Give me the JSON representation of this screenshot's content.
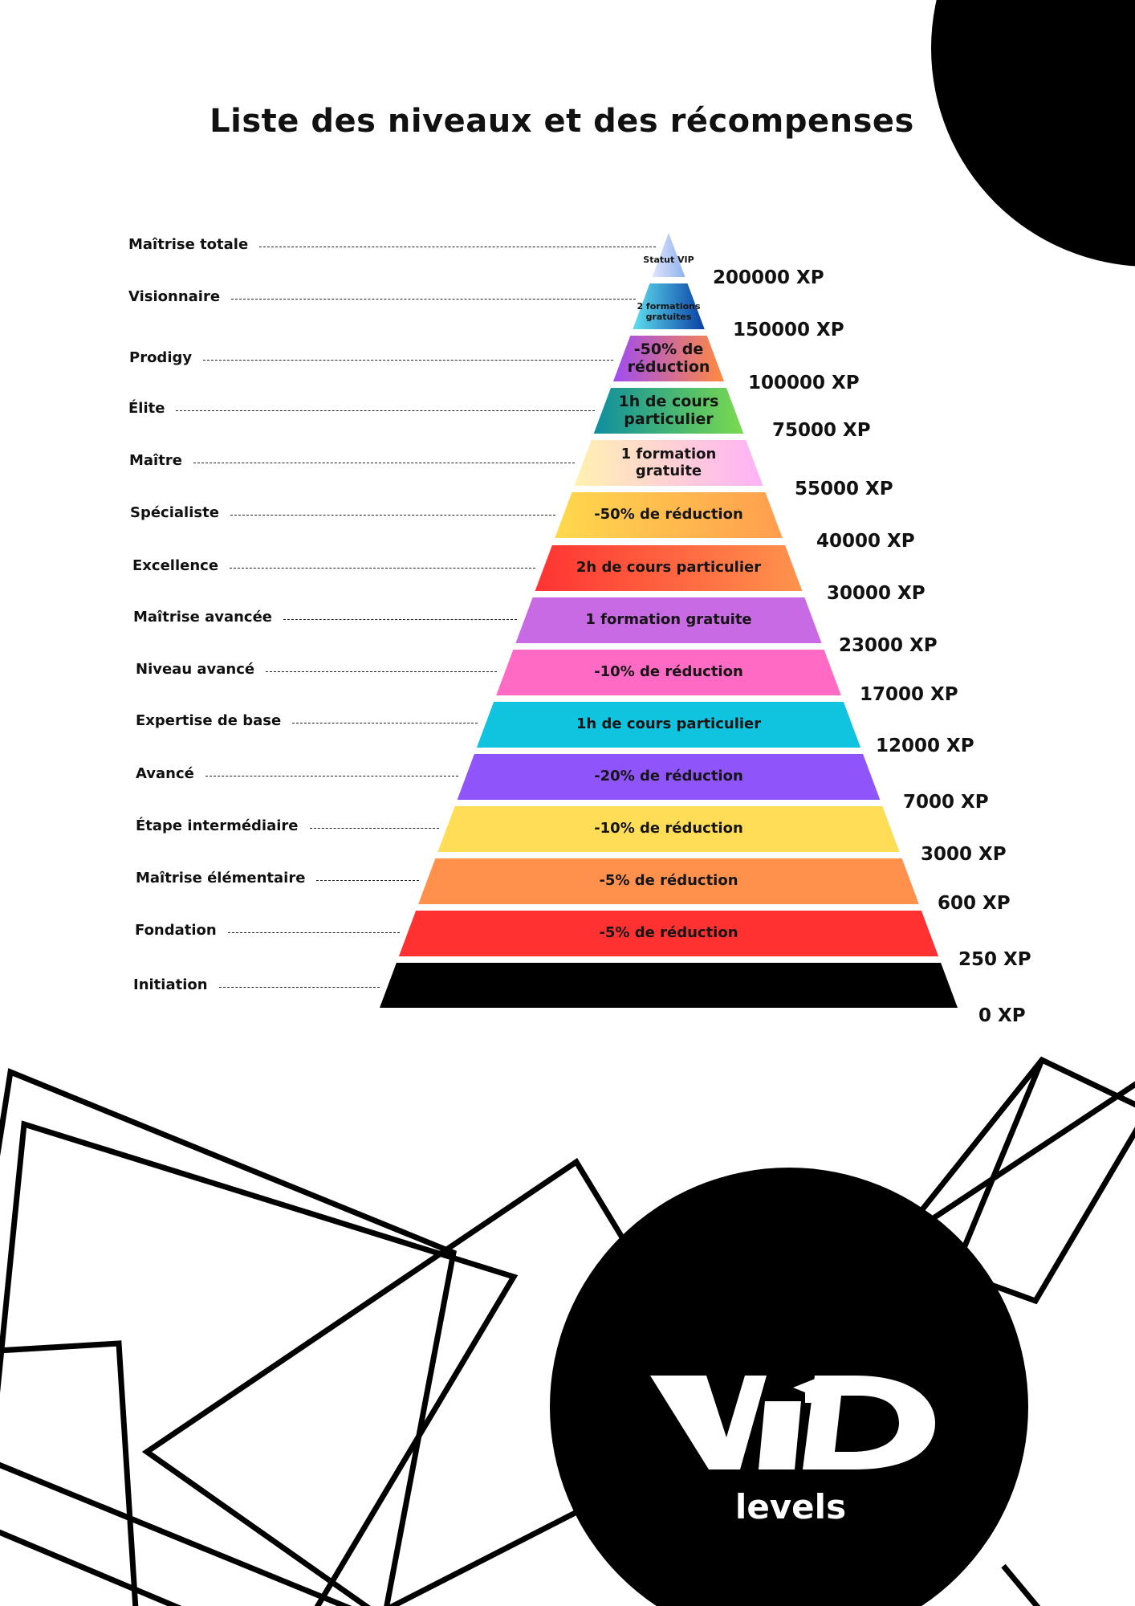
{
  "title": "Liste des niveaux et des récompenses",
  "levels": [
    {
      "name": "Maîtrise totale",
      "reward": "Statut VIP",
      "xp": "200000 XP",
      "colors": [
        "#dfe4fb",
        "#8fb3ef"
      ]
    },
    {
      "name": "Visionnaire",
      "reward": "2 formations gratuites",
      "xp": "150000 XP",
      "colors": [
        "#5fe0ee",
        "#0a3fa5"
      ]
    },
    {
      "name": "Prodigy",
      "reward": "-50% de réduction",
      "xp": "100000 XP",
      "colors": [
        "#9e4cf2",
        "#ff8a3f"
      ]
    },
    {
      "name": "Élite",
      "reward": "1h de cours particulier",
      "xp": "75000 XP",
      "colors": [
        "#0e8d9f",
        "#7ada4e"
      ]
    },
    {
      "name": "Maître",
      "reward": "1 formation gratuite",
      "xp": "55000 XP",
      "colors": [
        "#fff1b0",
        "#ffb1f7"
      ]
    },
    {
      "name": "Spécialiste",
      "reward": "-50% de réduction",
      "xp": "40000 XP",
      "colors": [
        "#ffd94d",
        "#ff9d4f"
      ]
    },
    {
      "name": "Excellence",
      "reward": "2h de cours particulier",
      "xp": "30000 XP",
      "colors": [
        "#ff3333",
        "#ff944d"
      ]
    },
    {
      "name": "Maîtrise avancée",
      "reward": "1 formation gratuite",
      "xp": "23000 XP",
      "colors": [
        "#c86ae3",
        "#c86ae3"
      ]
    },
    {
      "name": "Niveau avancé",
      "reward": "-10% de réduction",
      "xp": "17000 XP",
      "colors": [
        "#ff6ac5",
        "#ff6ac5"
      ]
    },
    {
      "name": "Expertise de base",
      "reward": "1h de cours particulier",
      "xp": "12000 XP",
      "colors": [
        "#10c3df",
        "#10c3df"
      ]
    },
    {
      "name": "Avancé",
      "reward": "-20% de réduction",
      "xp": "7000 XP",
      "colors": [
        "#8f55fa",
        "#8f55fa"
      ]
    },
    {
      "name": "Étape intermédiaire",
      "reward": "-10% de réduction",
      "xp": "3000 XP",
      "colors": [
        "#ffdd57",
        "#ffdd57"
      ]
    },
    {
      "name": "Maîtrise élémentaire",
      "reward": "-5% de réduction",
      "xp": "600 XP",
      "colors": [
        "#ff914d",
        "#ff914d"
      ]
    },
    {
      "name": "Fondation",
      "reward": "-5% de réduction",
      "xp": "250 XP",
      "colors": [
        "#ff3131",
        "#ff3131"
      ]
    },
    {
      "name": "Initiation",
      "reward": "",
      "xp": "0 XP",
      "colors": [
        "#000000",
        "#000000"
      ]
    }
  ],
  "logo": {
    "mark": "VID",
    "caption": "levels"
  }
}
